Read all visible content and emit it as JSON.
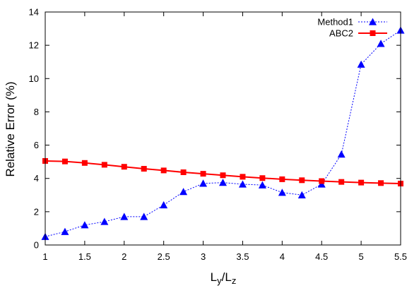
{
  "chart_data": {
    "type": "line",
    "title": "",
    "xlabel": "L_y/L_z",
    "xlabel_main1": "L",
    "xlabel_sub1": "y",
    "xlabel_sep": "/L",
    "xlabel_sub2": "z",
    "ylabel": "Relative Error (%)",
    "xlim": [
      1,
      5.5
    ],
    "ylim": [
      0,
      14
    ],
    "xticks": [
      1,
      1.5,
      2,
      2.5,
      3,
      3.5,
      4,
      4.5,
      5,
      5.5
    ],
    "xtick_labels": [
      "1",
      "1.5",
      "2",
      "2.5",
      "3",
      "3.5",
      "4",
      "4.5",
      "5",
      "5.5"
    ],
    "yticks": [
      0,
      2,
      4,
      6,
      8,
      10,
      12,
      14
    ],
    "ytick_labels": [
      "0",
      "2",
      "4",
      "6",
      "8",
      "10",
      "12",
      "14"
    ],
    "grid": false,
    "legend_position": "top-right",
    "x": [
      1,
      1.25,
      1.5,
      1.75,
      2,
      2.25,
      2.5,
      2.75,
      3,
      3.25,
      3.5,
      3.75,
      4,
      4.25,
      4.5,
      4.75,
      5,
      5.25,
      5.5
    ],
    "series": [
      {
        "name": "Method1",
        "color": "#0000ff",
        "marker": "triangle",
        "line_style": "dotted",
        "values": [
          0.5,
          0.8,
          1.2,
          1.4,
          1.7,
          1.7,
          2.4,
          3.2,
          3.7,
          3.75,
          3.65,
          3.6,
          3.15,
          3.0,
          3.65,
          5.45,
          10.85,
          12.1,
          12.9
        ]
      },
      {
        "name": "ABC2",
        "color": "#ff0000",
        "marker": "square",
        "line_style": "solid",
        "values": [
          5.05,
          5.02,
          4.93,
          4.82,
          4.7,
          4.58,
          4.48,
          4.37,
          4.28,
          4.19,
          4.1,
          4.02,
          3.95,
          3.89,
          3.84,
          3.79,
          3.75,
          3.72,
          3.69
        ]
      }
    ]
  }
}
